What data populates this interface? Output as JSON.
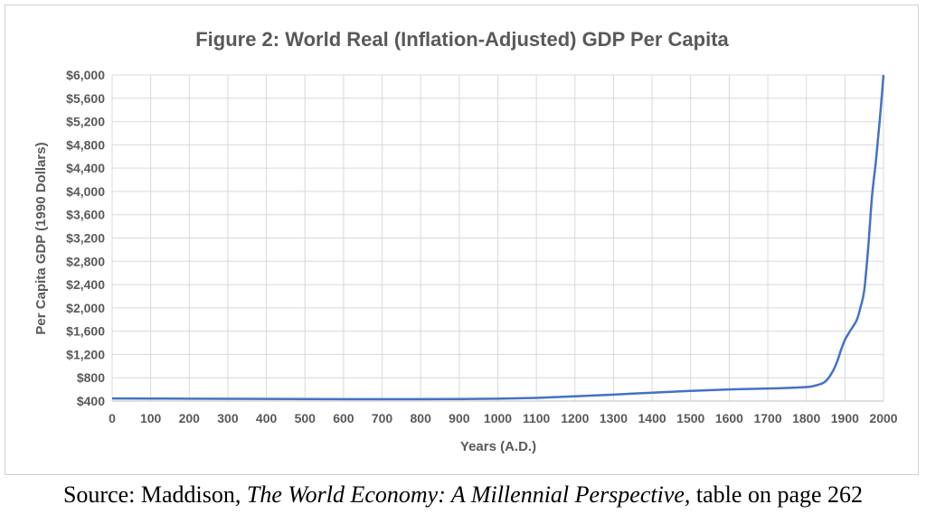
{
  "chart_data": {
    "type": "line",
    "title": "Figure 2: World Real (Inflation-Adjusted) GDP Per Capita",
    "xlabel": "Years (A.D.)",
    "ylabel": "Per Capita GDP (1990 Dollars)",
    "xlim": [
      0,
      2000
    ],
    "ylim": [
      400,
      6000
    ],
    "grid": true,
    "x_ticks": [
      "0",
      "100",
      "200",
      "300",
      "400",
      "500",
      "600",
      "700",
      "800",
      "900",
      "1000",
      "1100",
      "1200",
      "1300",
      "1400",
      "1500",
      "1600",
      "1700",
      "1800",
      "1900",
      "2000"
    ],
    "y_ticks": [
      "$400",
      "$800",
      "$1,200",
      "$1,600",
      "$2,000",
      "$2,400",
      "$2,800",
      "$3,200",
      "$3,600",
      "$4,000",
      "$4,400",
      "$4,800",
      "$5,200",
      "$5,600",
      "$6,000"
    ],
    "line_color": "#4472C4",
    "series": [
      {
        "x": [
          0,
          200,
          400,
          600,
          800,
          900,
          1000,
          1100,
          1200,
          1300,
          1400,
          1500,
          1600,
          1700,
          1750,
          1800,
          1820,
          1840,
          1850,
          1860,
          1870,
          1880,
          1890,
          1900,
          1913,
          1930,
          1940,
          1950,
          1960,
          1970,
          1980,
          1990,
          2000
        ],
        "values": [
          445,
          440,
          437,
          433,
          433,
          435,
          440,
          455,
          480,
          510,
          545,
          575,
          600,
          615,
          625,
          640,
          660,
          700,
          740,
          820,
          930,
          1080,
          1280,
          1450,
          1600,
          1780,
          2000,
          2300,
          3000,
          3900,
          4500,
          5200,
          6000
        ]
      }
    ]
  },
  "source": {
    "prefix": "Source: Maddison, ",
    "book_title": "The World Economy: A Millennial Perspective,",
    "suffix": " table on page 262"
  }
}
